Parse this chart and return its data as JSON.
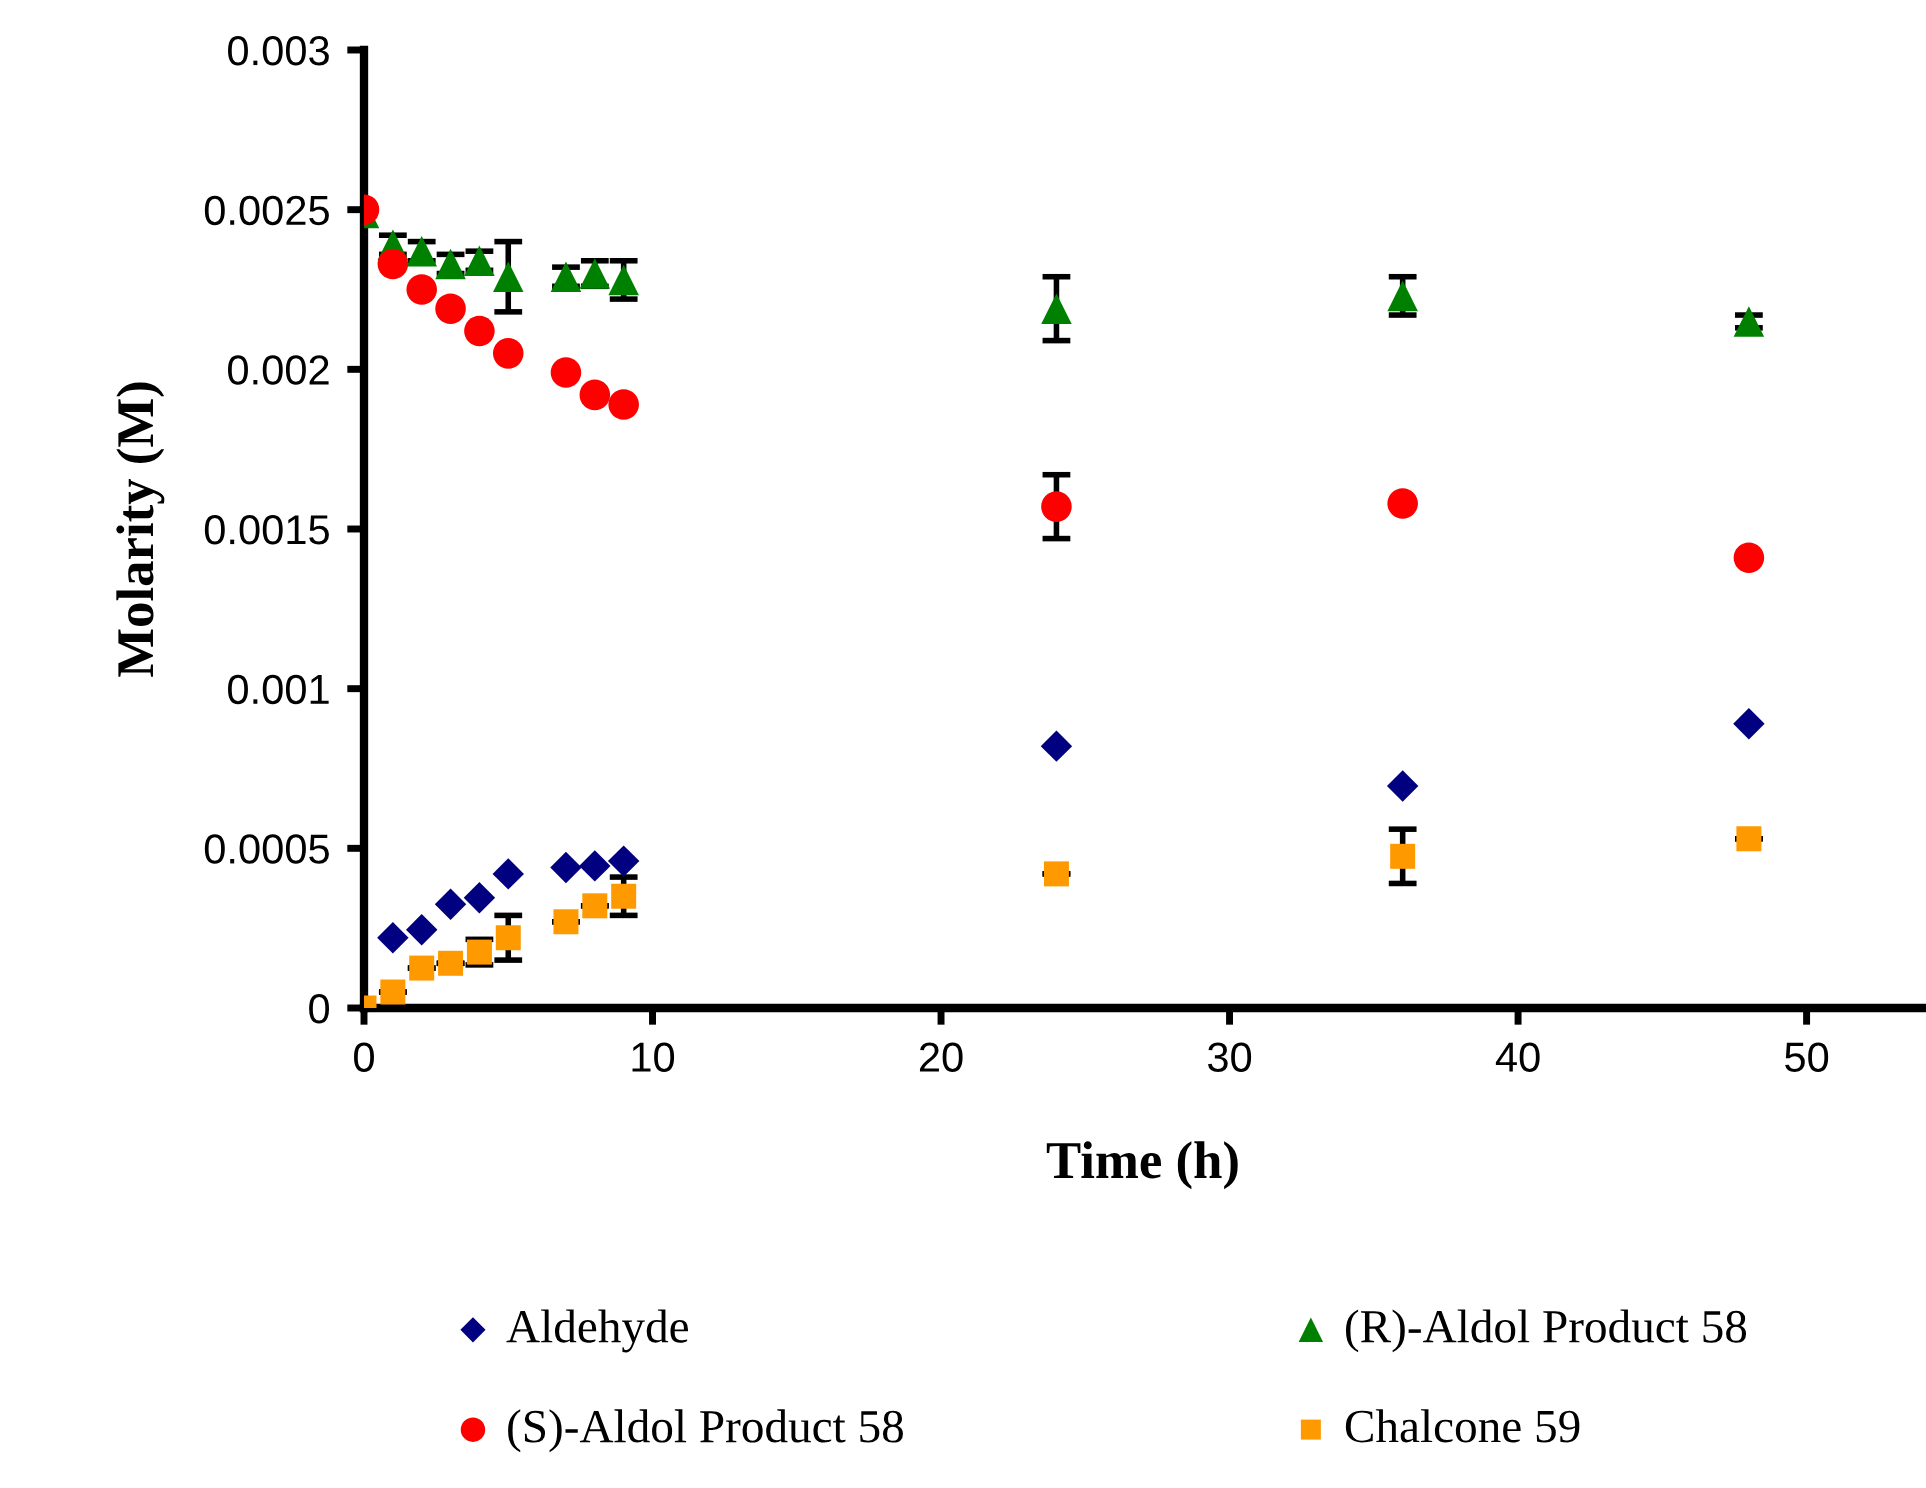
{
  "chart_data": {
    "type": "scatter",
    "xlabel": "Time (h)",
    "ylabel": "Molarity (M)",
    "xlim": [
      0,
      54
    ],
    "xticks": [
      0,
      10,
      20,
      30,
      40,
      50
    ],
    "ylim": [
      0,
      0.003
    ],
    "yticks": [
      0,
      0.0005,
      0.001,
      0.0015,
      0.002,
      0.0025,
      0.003
    ],
    "grid": false,
    "legend": "bottom",
    "series": [
      {
        "name": "Aldehyde",
        "color": "#000080",
        "marker": "diamond",
        "x": [
          1,
          2,
          3,
          4,
          5,
          7,
          8,
          9,
          24,
          36,
          48
        ],
        "values": [
          0.00022,
          0.000245,
          0.000325,
          0.000345,
          0.00042,
          0.00044,
          0.000445,
          0.00046,
          0.00082,
          0.000695,
          0.00089
        ]
      },
      {
        "name": "(R)-Aldol Product 58",
        "color": "#008000",
        "marker": "triangle",
        "x": [
          0,
          1,
          2,
          3,
          4,
          5,
          7,
          8,
          9,
          24,
          36,
          48
        ],
        "values": [
          0.00249,
          0.00239,
          0.00237,
          0.00233,
          0.00234,
          0.00229,
          0.00229,
          0.0023,
          0.00228,
          0.00219,
          0.00223,
          0.00215
        ],
        "errors": [
          null,
          3e-05,
          3e-05,
          3e-05,
          3e-05,
          0.00011,
          3e-05,
          4e-05,
          6e-05,
          0.0001,
          6e-05,
          2e-05
        ]
      },
      {
        "name": "(S)-Aldol Product 58",
        "color": "#ff0000",
        "marker": "circle",
        "x": [
          0,
          1,
          2,
          3,
          4,
          5,
          7,
          8,
          9,
          24,
          36,
          48
        ],
        "values": [
          0.0025,
          0.00233,
          0.00225,
          0.00219,
          0.00212,
          0.00205,
          0.00199,
          0.00192,
          0.00189,
          0.00157,
          0.00158,
          0.00141
        ],
        "errors": [
          null,
          null,
          null,
          null,
          null,
          null,
          null,
          null,
          null,
          0.0001,
          null,
          null
        ]
      },
      {
        "name": "Chalcone 59",
        "color": "#ff9900",
        "marker": "square",
        "x": [
          0,
          1,
          2,
          3,
          4,
          5,
          7,
          8,
          9,
          24,
          36,
          48
        ],
        "values": [
          0,
          5e-05,
          0.000125,
          0.00014,
          0.000175,
          0.00022,
          0.00027,
          0.00032,
          0.00035,
          0.00042,
          0.000475,
          0.00053
        ],
        "errors": [
          null,
          null,
          null,
          null,
          4e-05,
          7e-05,
          null,
          null,
          6e-05,
          null,
          8.5e-05,
          null
        ]
      }
    ]
  }
}
